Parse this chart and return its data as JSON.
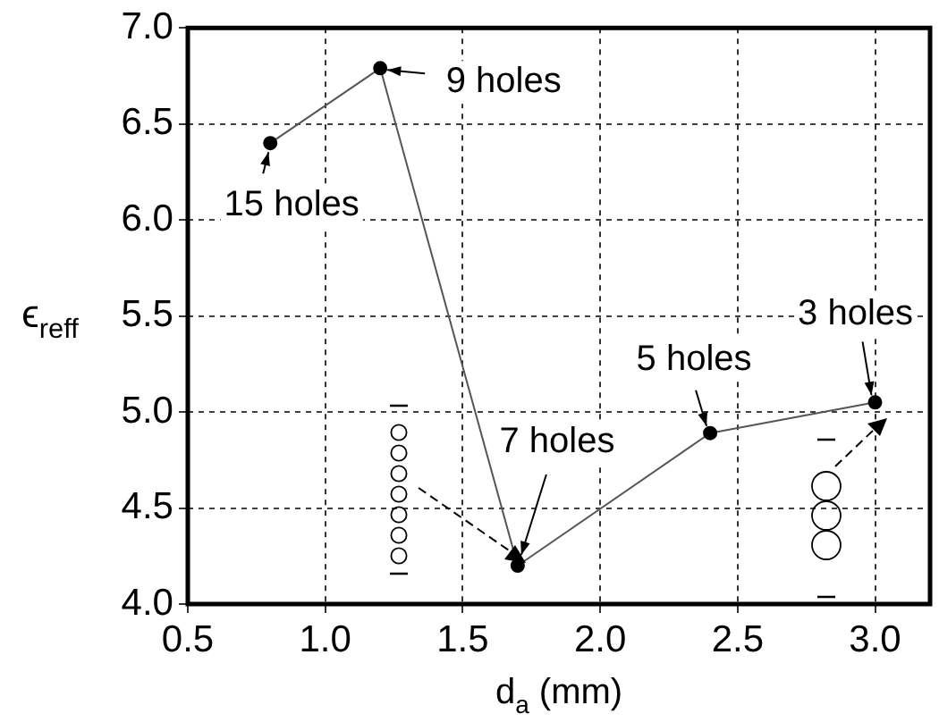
{
  "chart_data": {
    "type": "line",
    "xlabel": "d$_{a}$ (mm)",
    "ylabel": "ϵ$_{reff}$",
    "x": [
      0.8,
      1.2,
      1.7,
      2.4,
      3.0
    ],
    "values": [
      6.4,
      6.79,
      4.2,
      4.89,
      5.05
    ],
    "color": "#000000",
    "marker": "circle",
    "line_style": "solid",
    "xlim": [
      0.5,
      3.2
    ],
    "xticks": [
      0.5,
      {
        "value": 1,
        "label": "1.0"
      },
      1.5,
      {
        "value": 2,
        "label": "2.0"
      },
      2.5,
      {
        "value": 3,
        "label": "3.0"
      }
    ],
    "ylim": [
      4.0,
      7.0
    ],
    "yticks": [
      {
        "value": 4,
        "label": "4.0"
      },
      4.5,
      {
        "value": 5,
        "label": "5.0"
      },
      5.5,
      {
        "value": 6,
        "label": "6.0"
      },
      6.5,
      {
        "value": 7,
        "label": "7.0"
      }
    ],
    "grid": true,
    "legend": false,
    "annotations": [
      {
        "text": "15 holes",
        "x": 0.8,
        "y": 6.4
      },
      {
        "text": "9 holes",
        "x": 1.2,
        "y": 6.79
      },
      {
        "text": "7 holes",
        "x": 1.7,
        "y": 4.2
      },
      {
        "text": "5 holes",
        "x": 2.4,
        "y": 4.89
      },
      {
        "text": "3 holes",
        "x": 3.0,
        "y": 5.05
      }
    ]
  }
}
